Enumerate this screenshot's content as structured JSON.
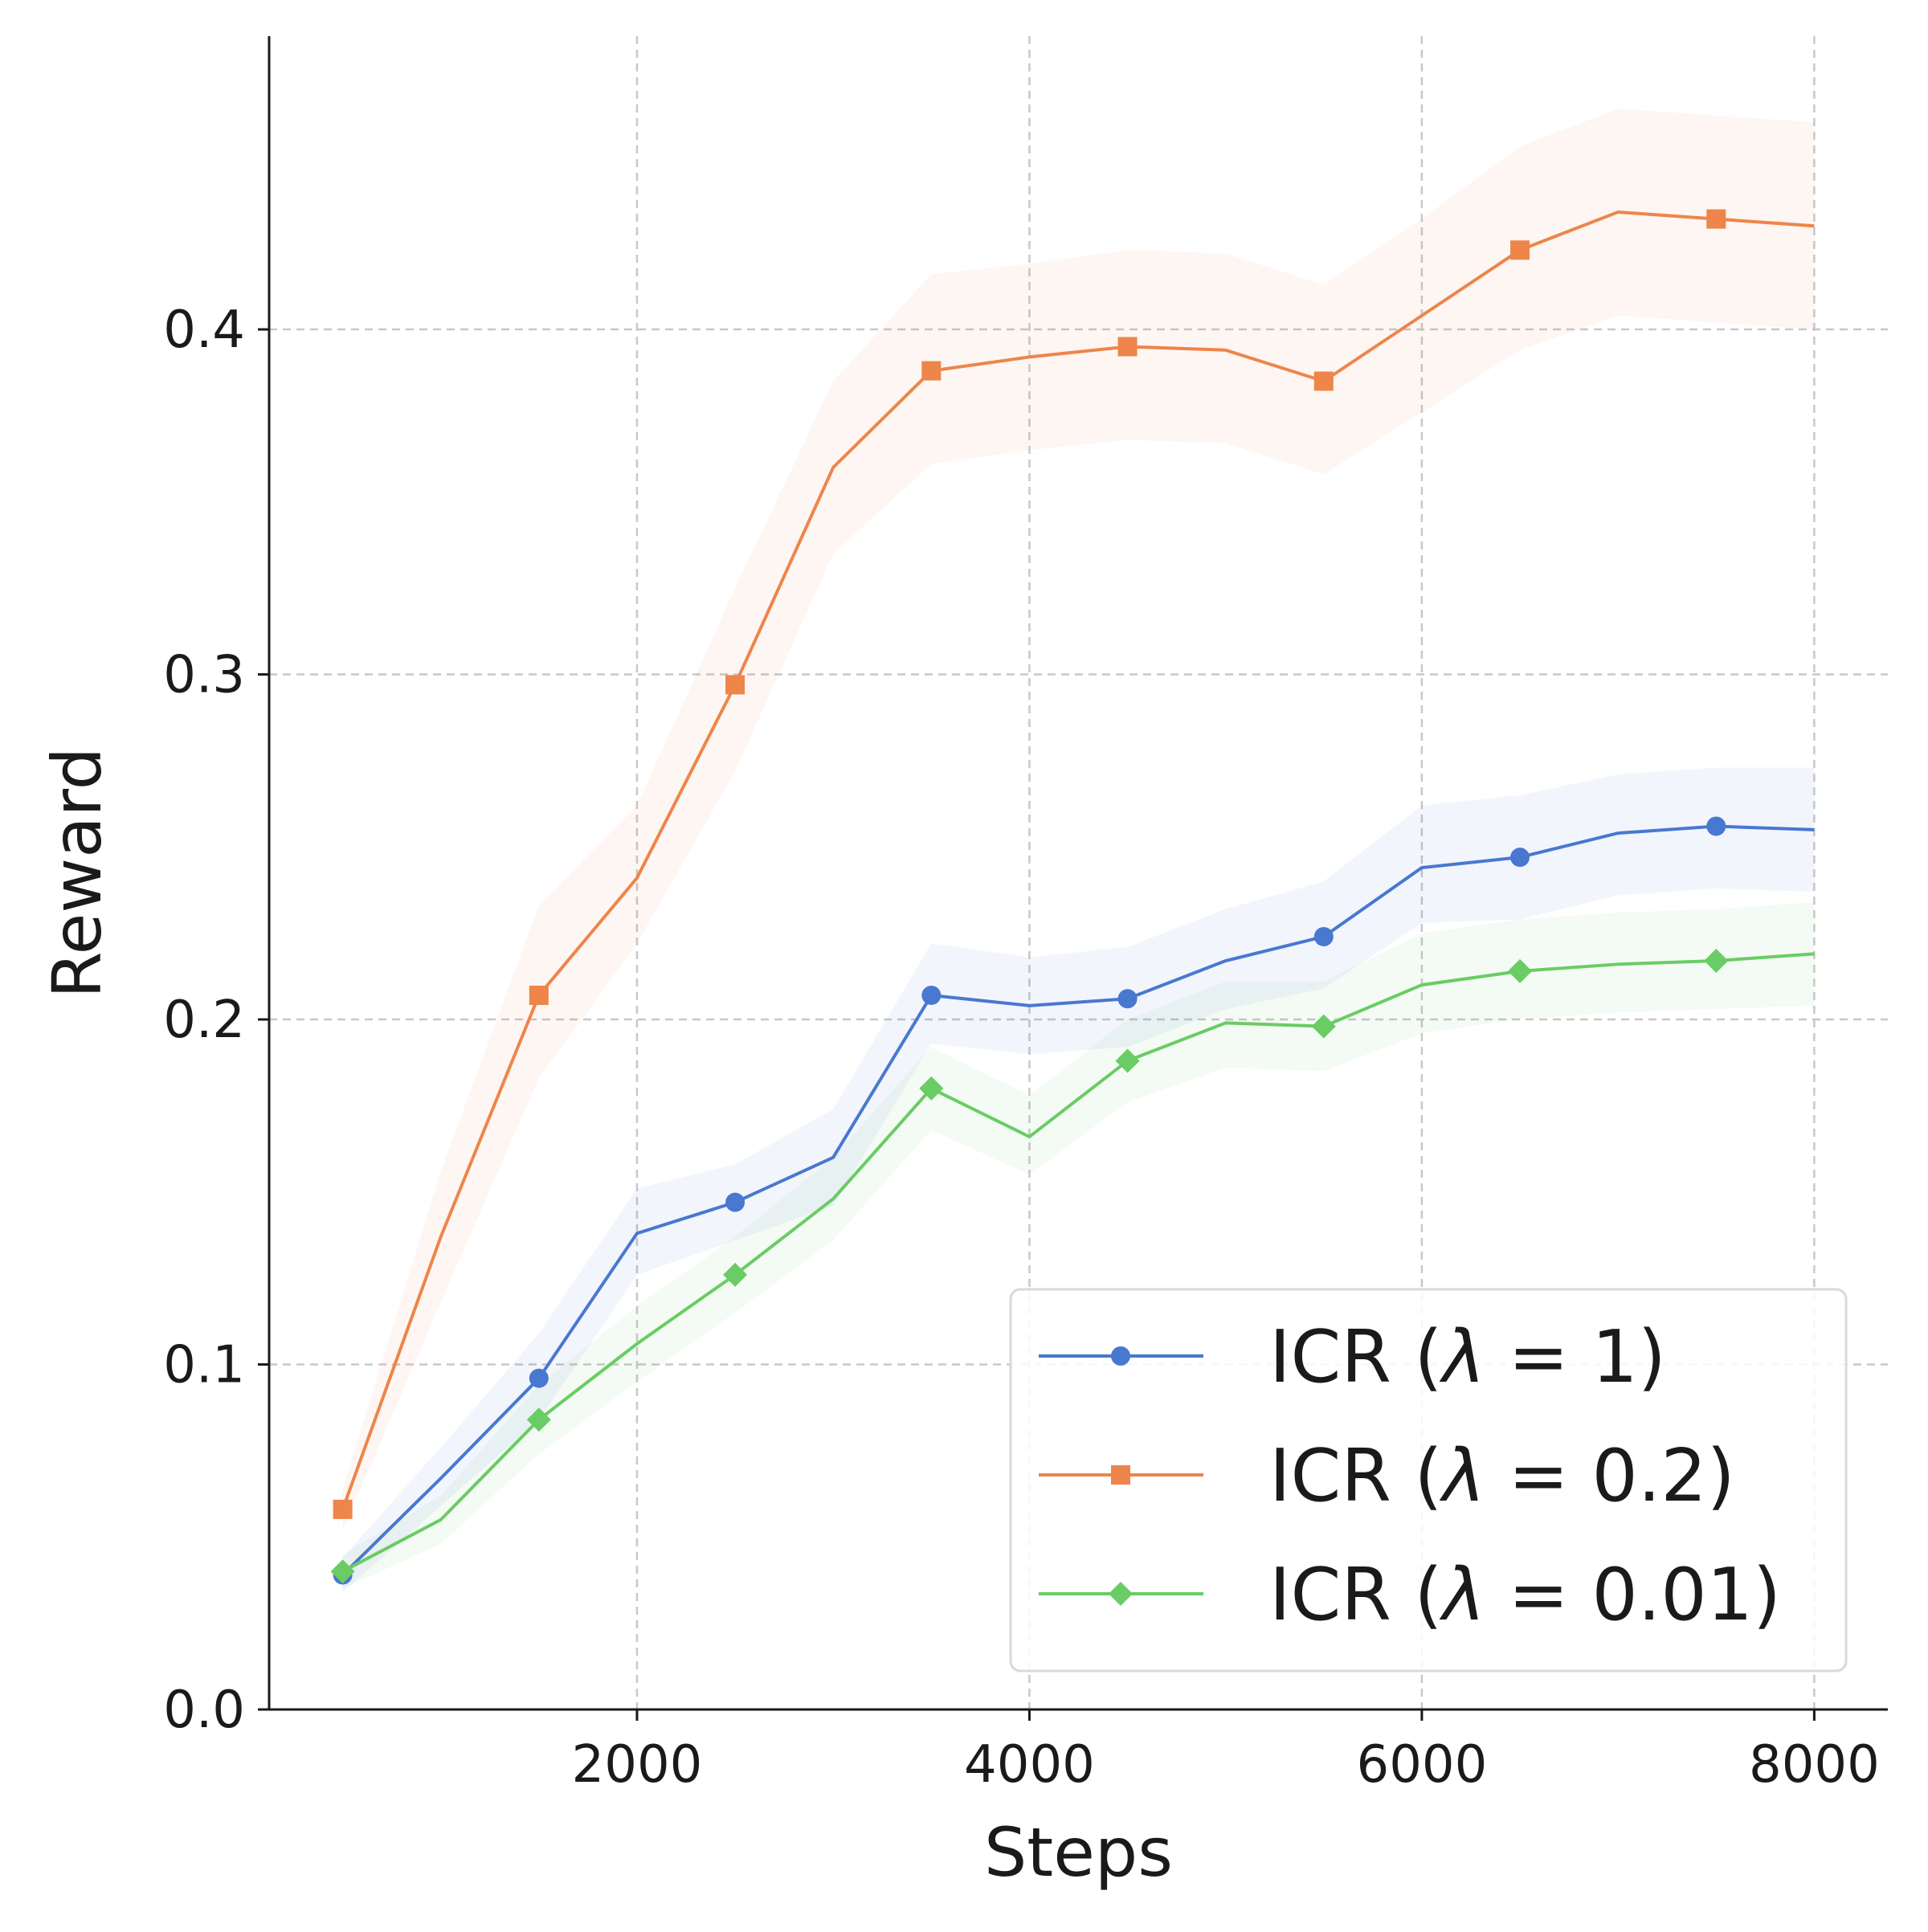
{
  "chart_data": {
    "type": "line",
    "title": "",
    "xlabel": "Steps",
    "ylabel": "Reward",
    "xlim": [
      125,
      8375
    ],
    "ylim": [
      0.0,
      0.485
    ],
    "xticks": [
      2000,
      4000,
      6000,
      8000
    ],
    "xtick_labels": [
      "2000",
      "4000",
      "6000",
      "8000"
    ],
    "yticks": [
      0.0,
      0.1,
      0.2,
      0.3,
      0.4
    ],
    "ytick_labels": [
      "0.0",
      "0.1",
      "0.2",
      "0.3",
      "0.4"
    ],
    "grid": true,
    "legend_position": "lower-right",
    "x": [
      500,
      1000,
      1500,
      2000,
      2500,
      3000,
      3500,
      4000,
      4500,
      5000,
      5500,
      6000,
      6500,
      7000,
      7500,
      8000
    ],
    "series": [
      {
        "name": "ICR (λ = 1)",
        "legend_prefix": "ICR (",
        "legend_lambda": "λ",
        "legend_suffix": " = 1)",
        "color": "#4878d0",
        "marker": "circle",
        "values": [
          0.039,
          0.067,
          0.096,
          0.138,
          0.147,
          0.16,
          0.207,
          0.204,
          0.206,
          0.217,
          0.224,
          0.244,
          0.247,
          0.254,
          0.256,
          0.255
        ],
        "lower": [
          0.034,
          0.059,
          0.084,
          0.126,
          0.136,
          0.146,
          0.193,
          0.19,
          0.192,
          0.203,
          0.209,
          0.228,
          0.229,
          0.236,
          0.238,
          0.237
        ],
        "upper": [
          0.044,
          0.076,
          0.109,
          0.151,
          0.158,
          0.174,
          0.222,
          0.218,
          0.221,
          0.232,
          0.24,
          0.262,
          0.265,
          0.271,
          0.273,
          0.273
        ],
        "markers_every": 2
      },
      {
        "name": "ICR (λ = 0.2)",
        "legend_prefix": "ICR (",
        "legend_lambda": "λ",
        "legend_suffix": " = 0.2)",
        "color": "#ee854a",
        "marker": "square",
        "values": [
          0.058,
          0.137,
          0.207,
          0.241,
          0.297,
          0.36,
          0.388,
          0.392,
          0.395,
          0.394,
          0.385,
          0.404,
          0.423,
          0.434,
          0.432,
          0.43
        ],
        "lower": [
          0.052,
          0.118,
          0.183,
          0.222,
          0.272,
          0.335,
          0.361,
          0.365,
          0.368,
          0.367,
          0.358,
          0.376,
          0.394,
          0.404,
          0.402,
          0.4
        ],
        "upper": [
          0.064,
          0.156,
          0.233,
          0.262,
          0.325,
          0.385,
          0.416,
          0.419,
          0.423,
          0.422,
          0.413,
          0.432,
          0.453,
          0.464,
          0.462,
          0.46
        ],
        "markers_every": 2
      },
      {
        "name": "ICR (λ = 0.01)",
        "legend_prefix": "ICR (",
        "legend_lambda": "λ",
        "legend_suffix": " = 0.01)",
        "color": "#6acc64",
        "marker": "diamond",
        "values": [
          0.04,
          0.055,
          0.084,
          0.106,
          0.126,
          0.148,
          0.18,
          0.166,
          0.188,
          0.199,
          0.198,
          0.21,
          0.214,
          0.216,
          0.217,
          0.219
        ],
        "lower": [
          0.035,
          0.048,
          0.074,
          0.095,
          0.115,
          0.136,
          0.168,
          0.155,
          0.176,
          0.186,
          0.185,
          0.196,
          0.2,
          0.202,
          0.203,
          0.204
        ],
        "upper": [
          0.045,
          0.062,
          0.094,
          0.117,
          0.137,
          0.16,
          0.192,
          0.178,
          0.2,
          0.211,
          0.211,
          0.225,
          0.229,
          0.231,
          0.232,
          0.234
        ],
        "markers_every": 2
      }
    ]
  }
}
